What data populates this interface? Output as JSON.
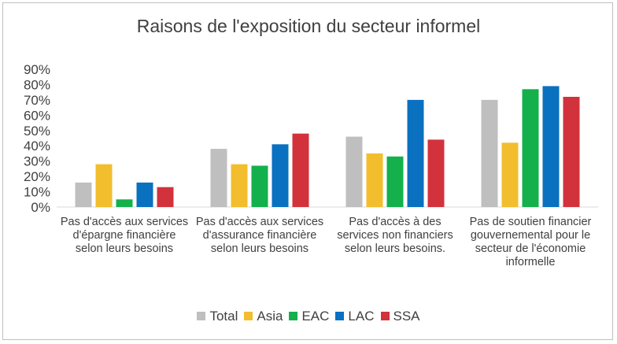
{
  "chart_data": {
    "type": "bar",
    "title": "Raisons de l'exposition du secteur informel",
    "categories": [
      "Pas d'accès aux services d'épargne financière selon leurs besoins",
      "Pas d'accès aux services d'assurance financière selon leurs besoins",
      "Pas d'accès à des services non financiers selon leurs besoins.",
      "Pas de soutien financier gouvernemental pour le secteur de l'économie informelle"
    ],
    "series": [
      {
        "name": "Total",
        "color": "#bfbfbf",
        "values": [
          16,
          38,
          46,
          70
        ]
      },
      {
        "name": "Asia",
        "color": "#f2be2e",
        "values": [
          28,
          28,
          35,
          42
        ]
      },
      {
        "name": "EAC",
        "color": "#14b04c",
        "values": [
          5,
          27,
          33,
          77
        ]
      },
      {
        "name": "LAC",
        "color": "#0a70c0",
        "values": [
          16,
          41,
          70,
          79
        ]
      },
      {
        "name": "SSA",
        "color": "#d2323c",
        "values": [
          13,
          48,
          44,
          72
        ]
      }
    ],
    "yticks": [
      "0%",
      "10%",
      "20%",
      "30%",
      "40%",
      "50%",
      "60%",
      "70%",
      "80%",
      "90%"
    ],
    "ylim": [
      0,
      90
    ],
    "ylabel": "",
    "xlabel": "",
    "grid": false,
    "legend": "bottom"
  }
}
